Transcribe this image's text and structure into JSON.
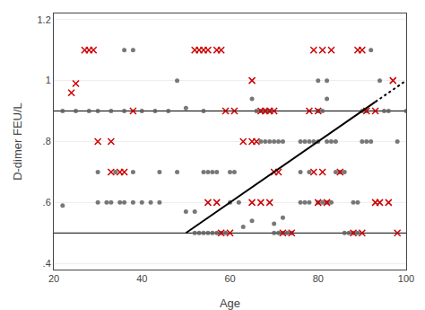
{
  "chart_data": {
    "type": "scatter",
    "xlabel": "Age",
    "ylabel": "D-dimer FEU/L",
    "xlim": [
      20,
      100
    ],
    "ylim": [
      0.38,
      1.22
    ],
    "xticks": [
      20,
      40,
      60,
      80,
      100
    ],
    "yticks": [
      {
        "value": 0.4,
        "label": ".4"
      },
      {
        "value": 0.6,
        "label": ".6"
      },
      {
        "value": 0.8,
        "label": ".8"
      },
      1.0,
      1.2
    ],
    "grid": "y",
    "hlines": [
      0.5,
      0.9
    ],
    "series": [
      {
        "type": "scatter",
        "marker": "circle",
        "color": "#606060",
        "x": [
          22,
          30,
          32,
          33,
          35,
          36,
          38,
          40,
          42,
          44,
          36,
          38,
          48,
          50,
          52,
          52,
          53,
          54,
          55,
          56,
          57,
          58,
          59,
          54,
          55,
          56,
          57,
          60,
          61,
          60,
          62,
          63,
          65,
          65,
          67,
          68,
          69,
          70,
          71,
          72,
          66,
          67,
          68,
          69,
          70,
          71,
          72,
          73,
          74,
          70,
          72,
          76,
          77,
          78,
          76,
          77,
          78,
          79,
          80,
          76,
          78,
          80,
          81,
          80,
          81,
          82,
          83,
          82,
          83,
          84,
          80,
          82,
          82,
          84,
          85,
          86,
          86,
          87,
          88,
          89,
          88,
          89,
          90,
          91,
          92,
          90,
          91,
          92,
          94,
          96,
          98,
          100,
          22,
          25,
          28,
          30,
          33,
          36,
          40,
          43,
          46,
          50,
          54,
          30,
          34,
          38,
          44,
          48,
          95
        ],
        "values": [
          0.59,
          0.6,
          0.6,
          0.6,
          0.6,
          0.6,
          0.6,
          0.6,
          0.6,
          0.6,
          1.1,
          1.1,
          1.0,
          0.57,
          0.57,
          0.5,
          0.5,
          0.5,
          0.5,
          0.5,
          0.5,
          0.5,
          0.5,
          0.7,
          0.7,
          0.7,
          0.7,
          0.7,
          0.7,
          0.6,
          0.6,
          0.52,
          0.54,
          0.94,
          0.8,
          0.8,
          0.8,
          0.8,
          0.8,
          0.8,
          0.9,
          0.9,
          0.9,
          0.9,
          0.5,
          0.5,
          0.5,
          0.5,
          0.5,
          0.53,
          0.55,
          0.6,
          0.6,
          0.6,
          0.8,
          0.8,
          0.8,
          0.8,
          0.8,
          0.7,
          0.7,
          0.9,
          0.9,
          0.6,
          0.6,
          0.6,
          0.6,
          0.8,
          0.8,
          0.8,
          1.0,
          1.0,
          0.94,
          0.7,
          0.7,
          0.7,
          0.5,
          0.5,
          0.5,
          0.5,
          0.6,
          0.6,
          0.8,
          0.8,
          0.8,
          0.9,
          0.9,
          1.1,
          1.0,
          0.9,
          0.8,
          0.9,
          0.9,
          0.9,
          0.9,
          0.9,
          0.9,
          0.9,
          0.9,
          0.9,
          0.9,
          0.91,
          0.9,
          0.7,
          0.7,
          0.7,
          0.7,
          0.7,
          0.9
        ]
      },
      {
        "type": "scatter",
        "marker": "x",
        "color": "#cc0000",
        "x": [
          24,
          25,
          27,
          28,
          29,
          30,
          33,
          33,
          35,
          36,
          38,
          52,
          53,
          54,
          55,
          57,
          58,
          59,
          61,
          55,
          57,
          58,
          60,
          63,
          65,
          66,
          67,
          68,
          69,
          70,
          65,
          67,
          69,
          70,
          71,
          72,
          74,
          65,
          79,
          81,
          83,
          78,
          80,
          79,
          81,
          85,
          80,
          82,
          88,
          90,
          89,
          90,
          91,
          93,
          93,
          94,
          96,
          98,
          97
        ],
        "values": [
          0.96,
          0.99,
          1.1,
          1.1,
          1.1,
          0.8,
          0.8,
          0.7,
          0.7,
          0.7,
          0.9,
          1.1,
          1.1,
          1.1,
          1.1,
          1.1,
          1.1,
          0.9,
          0.9,
          0.6,
          0.6,
          0.5,
          0.5,
          0.8,
          0.8,
          0.8,
          0.9,
          0.9,
          0.9,
          0.9,
          0.6,
          0.6,
          0.6,
          0.7,
          0.7,
          0.5,
          0.5,
          1.0,
          1.1,
          1.1,
          1.1,
          0.9,
          0.9,
          0.7,
          0.7,
          0.7,
          0.6,
          0.6,
          0.5,
          0.5,
          1.1,
          1.1,
          0.9,
          0.9,
          0.6,
          0.6,
          0.6,
          0.5,
          1.0
        ]
      },
      {
        "type": "line",
        "line_style": "solid",
        "color": "#000000",
        "x": [
          50,
          93
        ],
        "values": [
          0.5,
          0.93
        ]
      },
      {
        "type": "line",
        "line_style": "dotted",
        "color": "#000000",
        "x": [
          93,
          100
        ],
        "values": [
          0.93,
          1.0
        ]
      }
    ]
  }
}
